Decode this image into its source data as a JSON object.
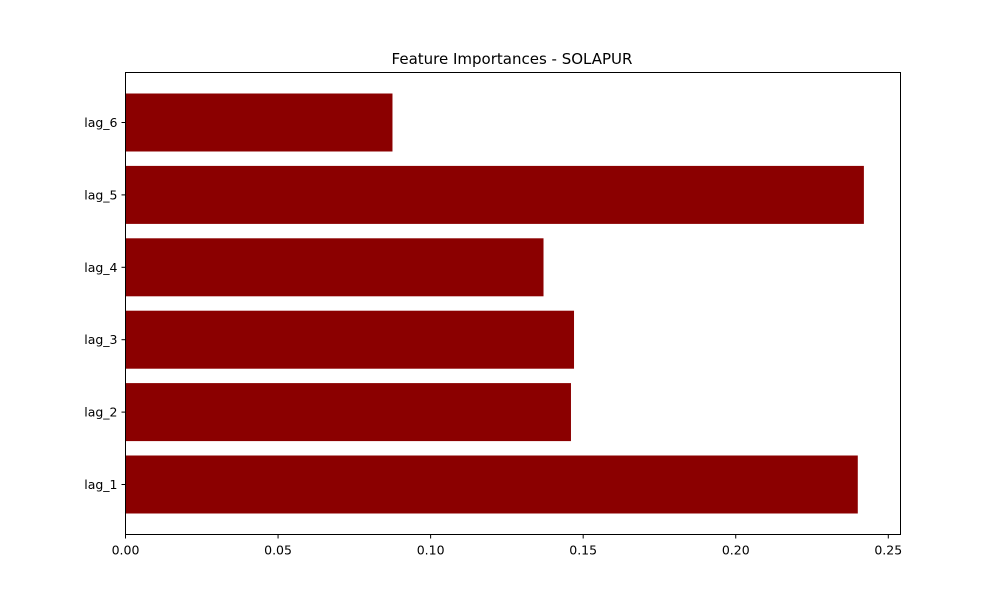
{
  "chart_data": {
    "type": "bar",
    "orientation": "horizontal",
    "title": "Feature Importances - SOLAPUR",
    "xlabel": "",
    "ylabel": "",
    "categories": [
      "lag_1",
      "lag_2",
      "lag_3",
      "lag_4",
      "lag_5",
      "lag_6"
    ],
    "values": [
      0.24,
      0.146,
      0.147,
      0.137,
      0.242,
      0.0875
    ],
    "xlim": [
      0,
      0.254
    ],
    "xticks": [
      0,
      0.05,
      0.1,
      0.15,
      0.2,
      0.25
    ],
    "xtick_labels": [
      "0.00",
      "0.05",
      "0.10",
      "0.15",
      "0.20",
      "0.25"
    ],
    "bar_color": "#8b0000",
    "grid": false,
    "legend": "none"
  }
}
